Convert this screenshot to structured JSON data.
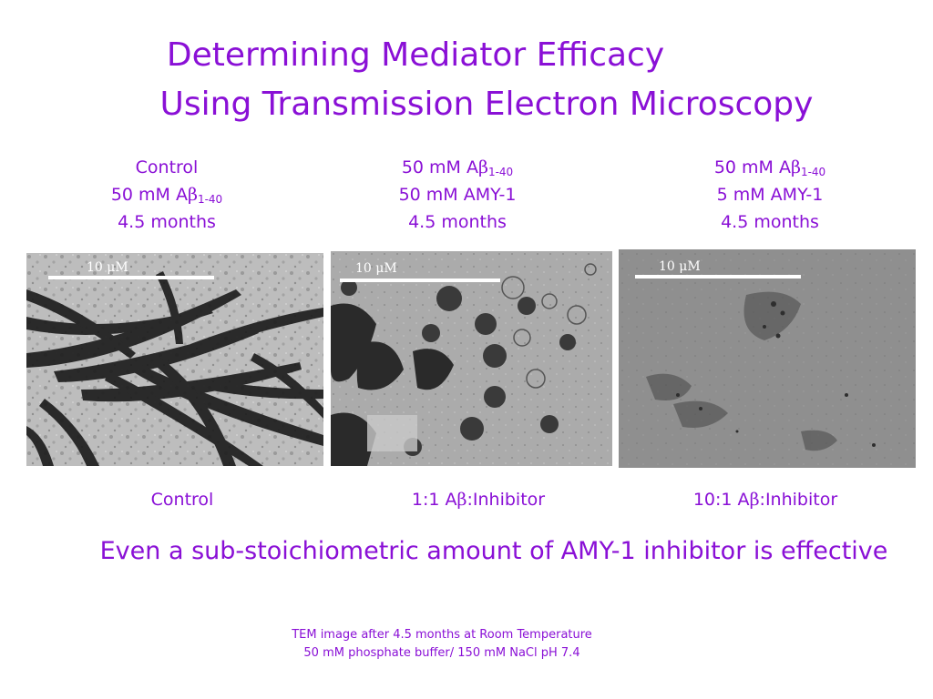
{
  "title": {
    "line1": "Determining Mediator Efficacy",
    "line2": "Using Transmission Electron Microscopy"
  },
  "conditions": [
    {
      "label": "Control",
      "conc_prefix": "50 mM A",
      "beta": "β",
      "subscript": "1-40",
      "line3": "4.5 months"
    },
    {
      "conc_prefix": "50 mM A",
      "beta": "β",
      "subscript": "1-40",
      "inhibitor": "50 mM AMY-1",
      "line3": "4.5 months"
    },
    {
      "conc_prefix": "50 mM A",
      "beta": "β",
      "subscript": "1-40",
      "inhibitor": "5 mM AMY-1",
      "line3": "4.5 months"
    }
  ],
  "scale_label": "10 μM",
  "ratios": [
    {
      "text": "Control"
    },
    {
      "prefix": "1:1 A",
      "beta": "β",
      "suffix": ":Inhibitor"
    },
    {
      "prefix": "10:1 A",
      "beta": "β",
      "suffix": ":Inhibitor"
    }
  ],
  "conclusion": "Even a sub-stoichiometric amount of AMY-1 inhibitor is effective",
  "footnote": {
    "line1": "TEM image after 4.5 months at Room Temperature",
    "line2": "50 mM phosphate buffer/ 150 mM NaCl pH 7.4"
  },
  "colors": {
    "accent": "#8a10d6",
    "panel_control_bg": "#b9b9b9",
    "panel_mid_bg": "#aaaaaa",
    "panel_right_bg": "#8e8e8e"
  }
}
